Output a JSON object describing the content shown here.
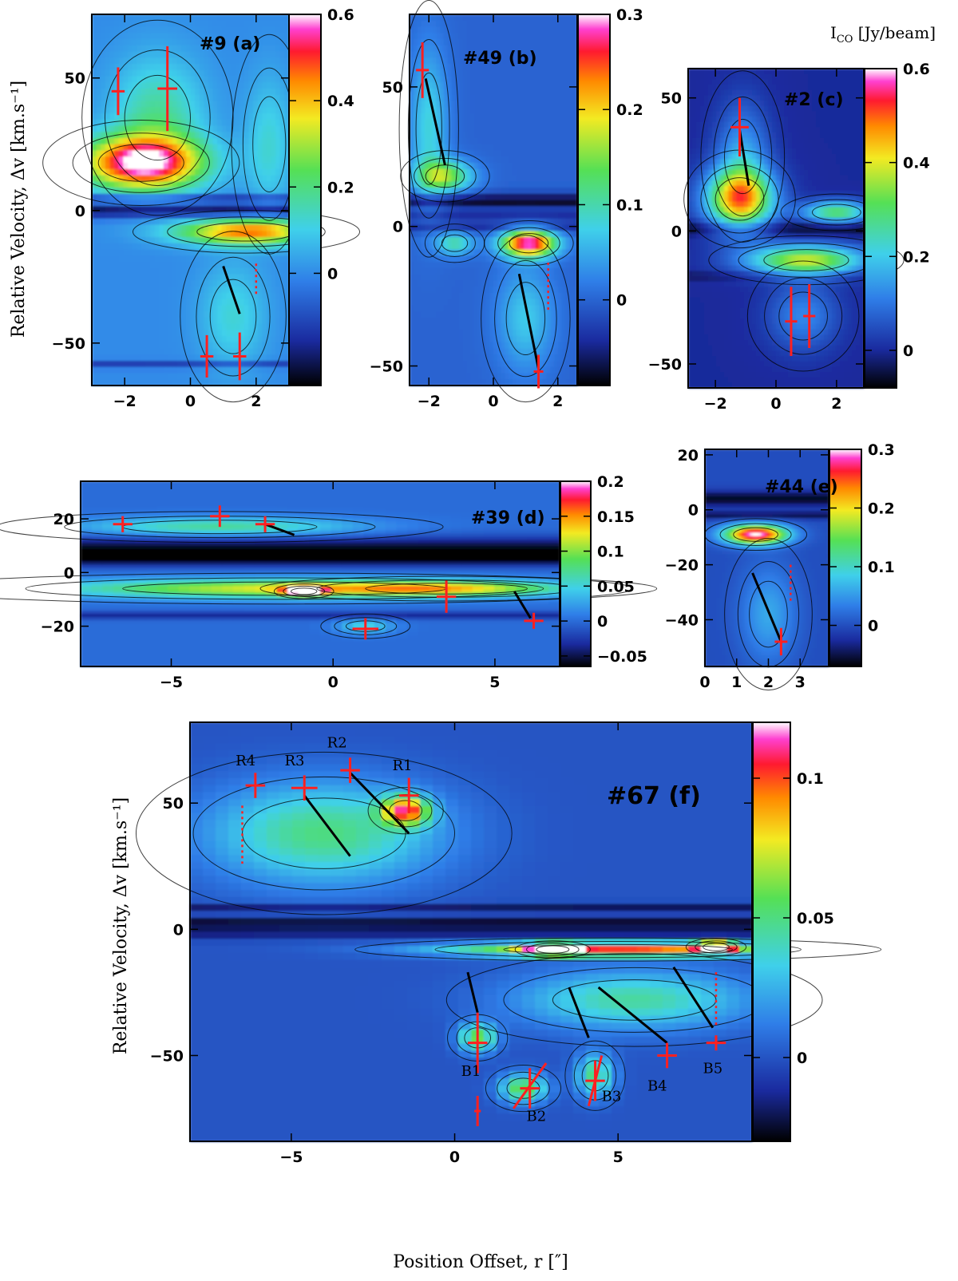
{
  "figure": {
    "y_axis_title": "Relative Velocity, Δv [km.s⁻¹]",
    "x_axis_title": "Position Offset, r [″]",
    "colorbar_title": "I",
    "colorbar_title_sub": "CO",
    "colorbar_title_unit": " [Jy/beam]"
  },
  "colors": {
    "background": "#3fbfe3",
    "marker": "#ff2020",
    "line": "#000000"
  },
  "chart_data": [
    {
      "type": "heatmap",
      "id": "a",
      "title": "#9 (a)",
      "xlim": [
        -3,
        3
      ],
      "ylim": [
        -66,
        74
      ],
      "xticks": [
        -2,
        0,
        2
      ],
      "yticks": [
        -50,
        0,
        50
      ],
      "cbar_ticks": [
        0,
        0.2,
        0.4,
        0.6
      ],
      "cbar_range": [
        -0.26,
        0.6
      ],
      "blobs": [
        {
          "x": -1.5,
          "y": 18,
          "sx": 1.3,
          "sy": 7,
          "v": 0.58
        },
        {
          "x": -1.0,
          "y": 35,
          "sx": 1.0,
          "sy": 16,
          "v": 0.18
        },
        {
          "x": 1.7,
          "y": -8,
          "sx": 1.5,
          "sy": 3.5,
          "v": 0.45
        },
        {
          "x": 1.3,
          "y": -40,
          "sx": 0.7,
          "sy": 14,
          "v": 0.12
        },
        {
          "x": 2.4,
          "y": 25,
          "sx": 0.5,
          "sy": 18,
          "v": 0.12
        }
      ],
      "stripes": [
        {
          "y": 0,
          "w": 2,
          "v": -0.22
        },
        {
          "y": 5,
          "w": 1,
          "v": -0.12
        },
        {
          "y": -58,
          "w": 1,
          "v": -0.12
        }
      ],
      "markers": [
        {
          "x": -2.2,
          "y": 45,
          "ex": 0.2,
          "ey": 9
        },
        {
          "x": -0.7,
          "y": 46,
          "ex": 0.3,
          "ey": 16
        },
        {
          "x": 0.5,
          "y": -55,
          "ex": 0.2,
          "ey": 8
        },
        {
          "x": 1.5,
          "y": -55,
          "ex": 0.2,
          "ey": 9
        }
      ],
      "lines": [
        {
          "x1": 1.0,
          "y1": -21,
          "x2": 1.5,
          "y2": -39
        }
      ],
      "dotted": [
        {
          "x1": 2.0,
          "y1": -20,
          "x2": 2.0,
          "y2": -32
        }
      ],
      "labels": []
    },
    {
      "type": "heatmap",
      "id": "b",
      "title": "#49 (b)",
      "xlim": [
        -2.6,
        2.6
      ],
      "ylim": [
        -57,
        76
      ],
      "xticks": [
        -2,
        0,
        2
      ],
      "yticks": [
        -50,
        0,
        50
      ],
      "cbar_ticks": [
        0,
        0.1,
        0.2,
        0.3
      ],
      "cbar_range": [
        -0.09,
        0.3
      ],
      "blobs": [
        {
          "x": 1.1,
          "y": -6,
          "sx": 0.6,
          "sy": 3.5,
          "v": 0.29
        },
        {
          "x": -1.5,
          "y": 18,
          "sx": 0.6,
          "sy": 4,
          "v": 0.15
        },
        {
          "x": -2.0,
          "y": 35,
          "sx": 0.4,
          "sy": 20,
          "v": 0.08
        },
        {
          "x": 1.0,
          "y": -33,
          "sx": 0.6,
          "sy": 13,
          "v": 0.07
        },
        {
          "x": -1.2,
          "y": -6,
          "sx": 0.4,
          "sy": 3,
          "v": 0.1
        }
      ],
      "stripes": [
        {
          "y": 9,
          "w": 2,
          "v": -0.08
        },
        {
          "y": 3,
          "w": 1,
          "v": -0.06
        },
        {
          "y": -1,
          "w": 1,
          "v": -0.05
        }
      ],
      "markers": [
        {
          "x": -2.2,
          "y": 56,
          "ex": 0.2,
          "ey": 10
        },
        {
          "x": 1.4,
          "y": -52,
          "ex": 0.15,
          "ey": 6
        }
      ],
      "lines": [
        {
          "x1": -2.1,
          "y1": 53,
          "x2": -1.5,
          "y2": 22
        },
        {
          "x1": 0.8,
          "y1": -17,
          "x2": 1.4,
          "y2": -51
        }
      ],
      "dotted": [
        {
          "x1": 1.7,
          "y1": -13,
          "x2": 1.7,
          "y2": -30
        }
      ],
      "labels": []
    },
    {
      "type": "heatmap",
      "id": "c",
      "title": "#2 (c)",
      "xlim": [
        -2.9,
        2.9
      ],
      "ylim": [
        -59,
        61
      ],
      "xticks": [
        -2,
        0,
        2
      ],
      "yticks": [
        -50,
        0,
        50
      ],
      "cbar_ticks": [
        0,
        0.2,
        0.4,
        0.6
      ],
      "cbar_range": [
        -0.08,
        0.6
      ],
      "blobs": [
        {
          "x": -1.2,
          "y": 12,
          "sx": 0.8,
          "sy": 8,
          "v": 0.45
        },
        {
          "x": -1.1,
          "y": 28,
          "sx": 0.6,
          "sy": 14,
          "v": 0.15
        },
        {
          "x": 1.0,
          "y": -11,
          "sx": 1.4,
          "sy": 4,
          "v": 0.38
        },
        {
          "x": 0.9,
          "y": -32,
          "sx": 0.8,
          "sy": 9,
          "v": 0.12
        },
        {
          "x": 2.0,
          "y": 7,
          "sx": 0.8,
          "sy": 3,
          "v": 0.3
        }
      ],
      "stripes": [
        {
          "y": 1,
          "w": 2,
          "v": -0.07
        },
        {
          "y": -17,
          "w": 1,
          "v": -0.04
        }
      ],
      "markers": [
        {
          "x": -1.2,
          "y": 39,
          "ex": 0.3,
          "ey": 11
        },
        {
          "x": 0.5,
          "y": -34,
          "ex": 0.2,
          "ey": 13
        },
        {
          "x": 1.1,
          "y": -32,
          "ex": 0.2,
          "ey": 12
        }
      ],
      "lines": [
        {
          "x1": -1.2,
          "y1": 38,
          "x2": -0.9,
          "y2": 17
        }
      ],
      "dotted": [],
      "labels": []
    },
    {
      "type": "heatmap",
      "id": "d",
      "title": "#39 (d)",
      "xlim": [
        -7.8,
        7
      ],
      "ylim": [
        -35,
        34
      ],
      "xticks": [
        -5,
        0,
        5
      ],
      "yticks": [
        -20,
        0,
        20
      ],
      "cbar_ticks": [
        -0.05,
        0,
        0.05,
        0.1,
        0.15,
        0.2
      ],
      "cbar_range": [
        -0.065,
        0.2
      ],
      "blobs": [
        {
          "x": -1.5,
          "y": -6,
          "sx": 5,
          "sy": 2.5,
          "v": 0.12
        },
        {
          "x": -3.5,
          "y": 17,
          "sx": 3,
          "sy": 2.5,
          "v": 0.07
        },
        {
          "x": 3.5,
          "y": -6,
          "sx": 2.5,
          "sy": 2,
          "v": 0.08
        },
        {
          "x": -0.9,
          "y": -7,
          "sx": 0.4,
          "sy": 1.2,
          "v": 0.2
        },
        {
          "x": 1.0,
          "y": -20,
          "sx": 0.6,
          "sy": 2,
          "v": 0.05
        }
      ],
      "stripes": [
        {
          "y": 9,
          "w": 3,
          "v": -0.055
        },
        {
          "y": 5,
          "w": 2,
          "v": -0.045
        },
        {
          "y": -16,
          "w": 1,
          "v": -0.035
        }
      ],
      "markers": [
        {
          "x": -6.5,
          "y": 18,
          "ex": 0.3,
          "ey": 3
        },
        {
          "x": -3.5,
          "y": 21,
          "ex": 0.3,
          "ey": 4
        },
        {
          "x": -2.1,
          "y": 18,
          "ex": 0.3,
          "ey": 3
        },
        {
          "x": 1.0,
          "y": -21,
          "ex": 0.4,
          "ey": 4
        },
        {
          "x": 3.5,
          "y": -9,
          "ex": 0.3,
          "ey": 6
        },
        {
          "x": 6.2,
          "y": -18,
          "ex": 0.3,
          "ey": 3
        }
      ],
      "lines": [
        {
          "x1": -2.1,
          "y1": 18,
          "x2": -1.2,
          "y2": 14
        },
        {
          "x1": 5.6,
          "y1": -7,
          "x2": 6.1,
          "y2": -17
        }
      ],
      "dotted": [],
      "labels": []
    },
    {
      "type": "heatmap",
      "id": "e",
      "title": "#44 (e)",
      "xlim": [
        0,
        3.9
      ],
      "ylim": [
        -57,
        22
      ],
      "xticks": [
        0,
        1,
        2,
        3
      ],
      "yticks": [
        -40,
        -20,
        0,
        20
      ],
      "cbar_ticks": [
        0,
        0.1,
        0.2,
        0.3
      ],
      "cbar_range": [
        -0.07,
        0.3
      ],
      "blobs": [
        {
          "x": 1.6,
          "y": -9,
          "sx": 0.7,
          "sy": 2.5,
          "v": 0.3
        },
        {
          "x": 2.0,
          "y": -38,
          "sx": 0.6,
          "sy": 12,
          "v": 0.06
        }
      ],
      "stripes": [
        {
          "y": 4,
          "w": 2,
          "v": -0.06
        },
        {
          "y": -2,
          "w": 1,
          "v": -0.05
        }
      ],
      "markers": [
        {
          "x": 2.4,
          "y": -48,
          "ex": 0.2,
          "ey": 5
        }
      ],
      "lines": [
        {
          "x1": 1.5,
          "y1": -23,
          "x2": 2.4,
          "y2": -48
        }
      ],
      "dotted": [
        {
          "x1": 2.7,
          "y1": -20,
          "x2": 2.7,
          "y2": -34
        }
      ],
      "labels": []
    },
    {
      "type": "heatmap",
      "id": "f",
      "title": "#67 (f)",
      "xlim": [
        -8.1,
        9.1
      ],
      "ylim": [
        -84,
        82
      ],
      "xticks": [
        -5,
        0,
        5
      ],
      "yticks": [
        -50,
        0,
        50
      ],
      "cbar_ticks": [
        0,
        0.05,
        0.1
      ],
      "cbar_range": [
        -0.03,
        0.12
      ],
      "blobs": [
        {
          "x": -4.0,
          "y": 38,
          "sx": 2.5,
          "sy": 14,
          "v": 0.05
        },
        {
          "x": -1.5,
          "y": 47,
          "sx": 0.5,
          "sy": 4,
          "v": 0.09
        },
        {
          "x": 5.0,
          "y": -8,
          "sx": 3.5,
          "sy": 2,
          "v": 0.1
        },
        {
          "x": 8.0,
          "y": -7,
          "sx": 0.4,
          "sy": 1.5,
          "v": 0.12
        },
        {
          "x": 3.0,
          "y": -8,
          "sx": 0.5,
          "sy": 1.5,
          "v": 0.12
        },
        {
          "x": 5.5,
          "y": -28,
          "sx": 2.5,
          "sy": 8,
          "v": 0.045
        },
        {
          "x": 0.7,
          "y": -43,
          "sx": 0.4,
          "sy": 4,
          "v": 0.06
        },
        {
          "x": 2.1,
          "y": -63,
          "sx": 0.5,
          "sy": 4,
          "v": 0.06
        },
        {
          "x": 4.3,
          "y": -58,
          "sx": 0.4,
          "sy": 6,
          "v": 0.05
        }
      ],
      "stripes": [
        {
          "y": 2,
          "w": 2,
          "v": -0.028
        },
        {
          "y": 9,
          "w": 1,
          "v": -0.02
        },
        {
          "y": -3,
          "w": 1,
          "v": -0.015
        }
      ],
      "markers": [
        {
          "x": -6.1,
          "y": 57,
          "ex": 0.3,
          "ey": 5
        },
        {
          "x": -4.6,
          "y": 56,
          "ex": 0.4,
          "ey": 5
        },
        {
          "x": -3.2,
          "y": 63,
          "ex": 0.3,
          "ey": 5
        },
        {
          "x": -1.4,
          "y": 53,
          "ex": 0.3,
          "ey": 7
        },
        {
          "x": 0.7,
          "y": -45,
          "ex": 0.3,
          "ey": 12
        },
        {
          "x": 0.7,
          "y": -72,
          "ex": 0.1,
          "ey": 6
        },
        {
          "x": 2.3,
          "y": -63,
          "ex": 0.3,
          "ey": 8
        },
        {
          "x": 4.3,
          "y": -60,
          "ex": 0.3,
          "ey": 8
        },
        {
          "x": 6.5,
          "y": -50,
          "ex": 0.3,
          "ey": 5
        },
        {
          "x": 8.0,
          "y": -45,
          "ex": 0.3,
          "ey": 3
        }
      ],
      "lines": [
        {
          "x1": -4.6,
          "y1": 53,
          "x2": -3.2,
          "y2": 29
        },
        {
          "x1": -3.2,
          "y1": 62,
          "x2": -1.4,
          "y2": 38
        },
        {
          "x1": 0.4,
          "y1": -17,
          "x2": 0.7,
          "y2": -33
        },
        {
          "x1": 3.5,
          "y1": -23,
          "x2": 4.1,
          "y2": -43
        },
        {
          "x1": 4.4,
          "y1": -23,
          "x2": 6.5,
          "y2": -45
        },
        {
          "x1": 6.7,
          "y1": -15,
          "x2": 7.9,
          "y2": -39
        }
      ],
      "slanted": [
        {
          "x1": 1.8,
          "y1": -71,
          "x2": 2.8,
          "y2": -53
        },
        {
          "x1": 4.1,
          "y1": -70,
          "x2": 4.5,
          "y2": -50
        }
      ],
      "dotted": [
        {
          "x1": -6.5,
          "y1": 49,
          "x2": -6.5,
          "y2": 26
        },
        {
          "x1": 8.0,
          "y1": -17,
          "x2": 8.0,
          "y2": -38
        }
      ],
      "labels": [
        {
          "text": "R4",
          "x": -6.4,
          "y": 65
        },
        {
          "text": "R3",
          "x": -4.9,
          "y": 65
        },
        {
          "text": "R2",
          "x": -3.6,
          "y": 72
        },
        {
          "text": "R1",
          "x": -1.6,
          "y": 63
        },
        {
          "text": "B1",
          "x": 0.5,
          "y": -58
        },
        {
          "text": "B2",
          "x": 2.5,
          "y": -76
        },
        {
          "text": "B3",
          "x": 4.8,
          "y": -68
        },
        {
          "text": "B4",
          "x": 6.2,
          "y": -64
        },
        {
          "text": "B5",
          "x": 7.9,
          "y": -57
        }
      ]
    }
  ]
}
